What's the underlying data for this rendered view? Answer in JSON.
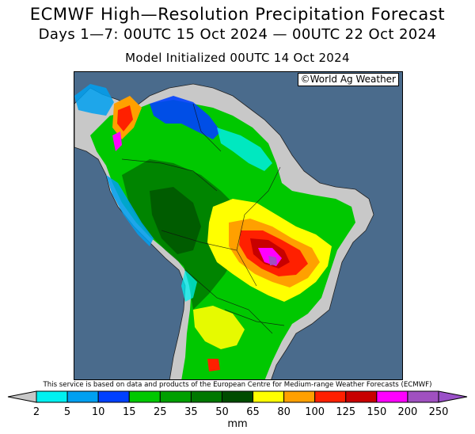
{
  "header": {
    "title": "ECMWF High—Resolution Precipitation Forecast",
    "period": "Days 1—7: 00UTC 15 Oct 2024 — 00UTC 22 Oct 2024",
    "initialized": "Model Initialized 00UTC 14 Oct 2024"
  },
  "map": {
    "credit": "©World Ag Weather",
    "ocean_color": "#4a6b8c",
    "dry_land_color": "#c8c8c8"
  },
  "disclaimer": "This service is based on data and products of the European Centre for Medium-range Weather Forecasts (ECMWF)",
  "legend": {
    "unit": "mm",
    "ticks": [
      "2",
      "5",
      "10",
      "15",
      "25",
      "35",
      "50",
      "65",
      "80",
      "100",
      "125",
      "150",
      "200",
      "250"
    ],
    "low_color": "#c8c8c8",
    "high_color": "#9a50c8",
    "colors": [
      "#00f0f0",
      "#00a0f0",
      "#0040ff",
      "#00c800",
      "#00a000",
      "#007800",
      "#004c00",
      "#ffff00",
      "#ffa000",
      "#ff2000",
      "#c80000",
      "#ff00ff",
      "#a050c0"
    ]
  }
}
